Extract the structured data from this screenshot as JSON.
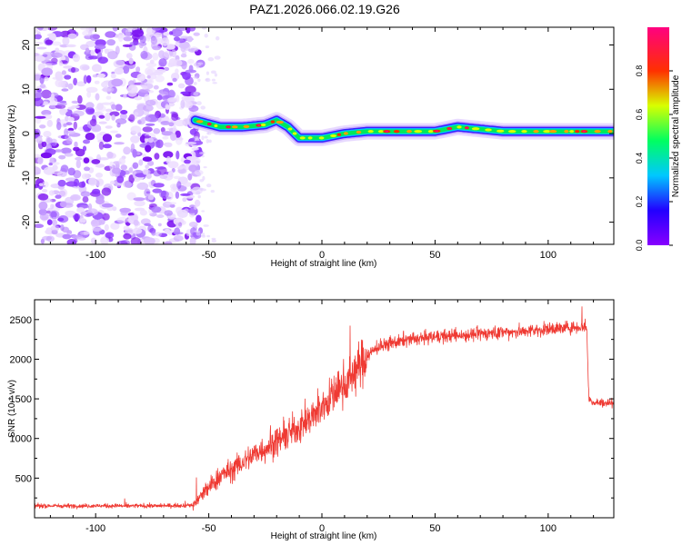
{
  "title": "PAZ1.2026.066.02.19.G26",
  "chart_data": [
    {
      "type": "heatmap",
      "name": "spectrogram",
      "xlabel": "Height of straight line (km)",
      "ylabel": "Frequency (Hz)",
      "xlim": [
        -127,
        129
      ],
      "ylim": [
        -25,
        24
      ],
      "x_ticks": [
        -100,
        -50,
        0,
        50,
        100
      ],
      "x_tick_labels": [
        "-100",
        "-50",
        "0",
        "50",
        "100"
      ],
      "y_ticks": [
        20,
        10,
        0,
        -10,
        -20
      ],
      "y_tick_labels": [
        "20",
        "10",
        "0",
        "-10",
        "-20"
      ],
      "noise_region_x": [
        -127,
        -56
      ],
      "signal_track": {
        "x": [
          -56,
          -45,
          -35,
          -25,
          -20,
          -15,
          -10,
          0,
          10,
          20,
          30,
          40,
          50,
          60,
          70,
          80,
          90,
          100,
          110,
          120,
          129
        ],
        "freq": [
          3,
          1.5,
          1.5,
          2,
          3,
          1.5,
          -1,
          -1,
          0,
          0.5,
          0.5,
          0.5,
          0.5,
          1.5,
          1,
          0.5,
          0.5,
          0.5,
          0.5,
          0.5,
          0.5
        ]
      },
      "colorbar": {
        "label": "Normalized spectral amplitude",
        "range": [
          0,
          1
        ],
        "ticks": [
          0.0,
          0.2,
          0.4,
          0.6,
          0.8
        ],
        "tick_labels": [
          "0.0",
          "0.2",
          "0.4",
          "0.6",
          "0.8"
        ],
        "colormap": "rainbow (purple-blue-cyan-green-yellow-red-magenta)"
      }
    },
    {
      "type": "line",
      "name": "snr",
      "xlabel": "Height of straight line (km)",
      "ylabel": "SNR (10 * v/v)",
      "xlim": [
        -127,
        129
      ],
      "ylim": [
        0,
        2750
      ],
      "x_ticks": [
        -100,
        -50,
        0,
        50,
        100
      ],
      "x_tick_labels": [
        "-100",
        "-50",
        "0",
        "50",
        "100"
      ],
      "y_ticks": [
        500,
        1000,
        1500,
        2000,
        2500
      ],
      "y_tick_labels": [
        "500",
        "1000",
        "1500",
        "2000",
        "2500"
      ],
      "color": "#ef3a33",
      "series": [
        {
          "name": "SNR",
          "x": [
            -127,
            -110,
            -90,
            -70,
            -57,
            -55,
            -50,
            -45,
            -40,
            -35,
            -30,
            -25,
            -20,
            -15,
            -10,
            -5,
            0,
            5,
            10,
            15,
            20,
            25,
            30,
            40,
            50,
            60,
            70,
            80,
            90,
            100,
            110,
            117,
            118,
            120,
            129
          ],
          "values": [
            150,
            150,
            150,
            150,
            160,
            220,
            380,
            530,
            600,
            700,
            800,
            880,
            960,
            1050,
            1150,
            1250,
            1400,
            1550,
            1700,
            1850,
            2050,
            2150,
            2200,
            2250,
            2280,
            2300,
            2320,
            2340,
            2350,
            2380,
            2400,
            2420,
            1500,
            1450,
            1450
          ]
        }
      ]
    }
  ]
}
